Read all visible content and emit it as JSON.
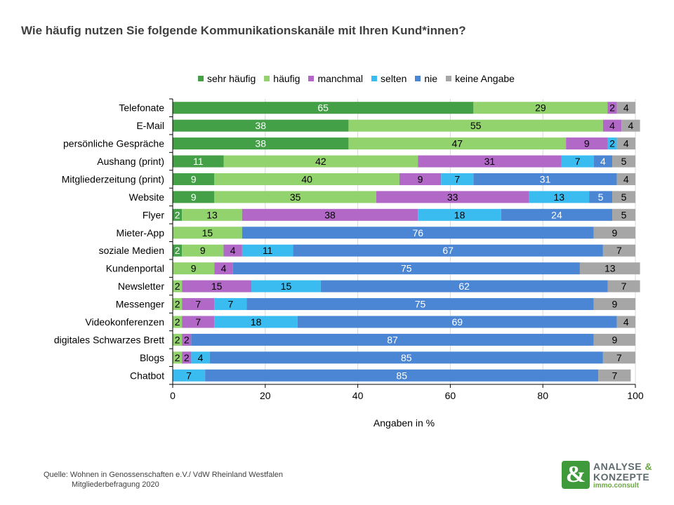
{
  "chart_data": {
    "type": "bar",
    "orientation": "horizontal",
    "stacked": true,
    "title": "Wie häufig nutzen Sie folgende Kommunikationskanäle mit Ihren Kund*innen?",
    "xlabel": "Angaben in %",
    "xlim": [
      0,
      100
    ],
    "xticks": [
      "0",
      "20",
      "40",
      "60",
      "80",
      "100"
    ],
    "grid": true,
    "legend_position": "top",
    "categories": [
      "Telefonate",
      "E-Mail",
      "persönliche Gespräche",
      "Aushang (print)",
      "Mitgliederzeitung (print)",
      "Website",
      "Flyer",
      "Mieter-App",
      "soziale Medien",
      "Kundenportal",
      "Newsletter",
      "Messenger",
      "Videokonferenzen",
      "digitales Schwarzes Brett",
      "Blogs",
      "Chatbot"
    ],
    "series": [
      {
        "name": "sehr häufig",
        "color": "#43a047",
        "label_color": "#ffffff",
        "values": [
          65,
          38,
          38,
          11,
          9,
          9,
          2,
          0,
          2,
          0,
          0,
          0,
          0,
          0,
          0,
          0
        ]
      },
      {
        "name": "häufig",
        "color": "#92d36e",
        "label_color": "#000000",
        "values": [
          29,
          55,
          47,
          42,
          40,
          35,
          13,
          15,
          9,
          9,
          2,
          2,
          2,
          2,
          2,
          0
        ]
      },
      {
        "name": "manchmal",
        "color": "#b168c6",
        "label_color": "#000000",
        "values": [
          2,
          4,
          9,
          31,
          9,
          33,
          38,
          0,
          4,
          4,
          15,
          7,
          7,
          2,
          2,
          0
        ]
      },
      {
        "name": "selten",
        "color": "#3bbcf0",
        "label_color": "#000000",
        "values": [
          0,
          0,
          2,
          7,
          7,
          13,
          18,
          0,
          11,
          0,
          15,
          7,
          18,
          0,
          4,
          7
        ]
      },
      {
        "name": "nie",
        "color": "#4a86d4",
        "label_color": "#ffffff",
        "values": [
          0,
          0,
          0,
          4,
          31,
          5,
          24,
          76,
          67,
          75,
          62,
          75,
          69,
          87,
          85,
          85
        ]
      },
      {
        "name": "keine Angabe",
        "color": "#a6a6a6",
        "label_color": "#000000",
        "values": [
          4,
          4,
          4,
          5,
          4,
          5,
          5,
          9,
          7,
          13,
          7,
          9,
          4,
          9,
          7,
          7
        ]
      }
    ]
  },
  "source": {
    "line1": "Quelle: Wohnen in Genossenschaften e.V./ VdW  Rheinland Westfalen",
    "line2": "Mitgliederbefragung 2020"
  },
  "logo": {
    "symbol": "&",
    "line1": "ANALYSE",
    "amp": "&",
    "line2": "KONZEPTE",
    "line3": "immo.consult"
  }
}
